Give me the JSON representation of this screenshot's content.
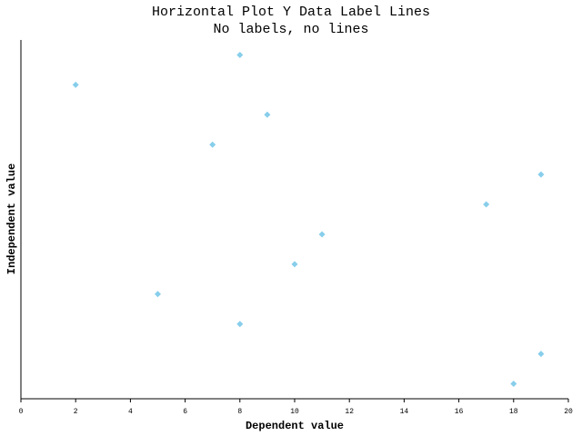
{
  "chart_data": {
    "type": "dot",
    "orientation": "horizontal",
    "title": "Horizontal Plot Y Data Label Lines",
    "subtitle": "No labels, no lines",
    "xlabel": "Dependent value",
    "ylabel": "Independent value",
    "categories": [
      null,
      null,
      null,
      null,
      null,
      null,
      null,
      null,
      null,
      null,
      null,
      null
    ],
    "values": [
      18,
      19,
      8,
      5,
      10,
      11,
      17,
      19,
      7,
      9,
      2,
      8
    ],
    "color": "#87ceeb",
    "xlim": [
      0,
      20
    ],
    "xticks": [
      0,
      2,
      4,
      6,
      8,
      10,
      12,
      14,
      16,
      18,
      20
    ]
  }
}
